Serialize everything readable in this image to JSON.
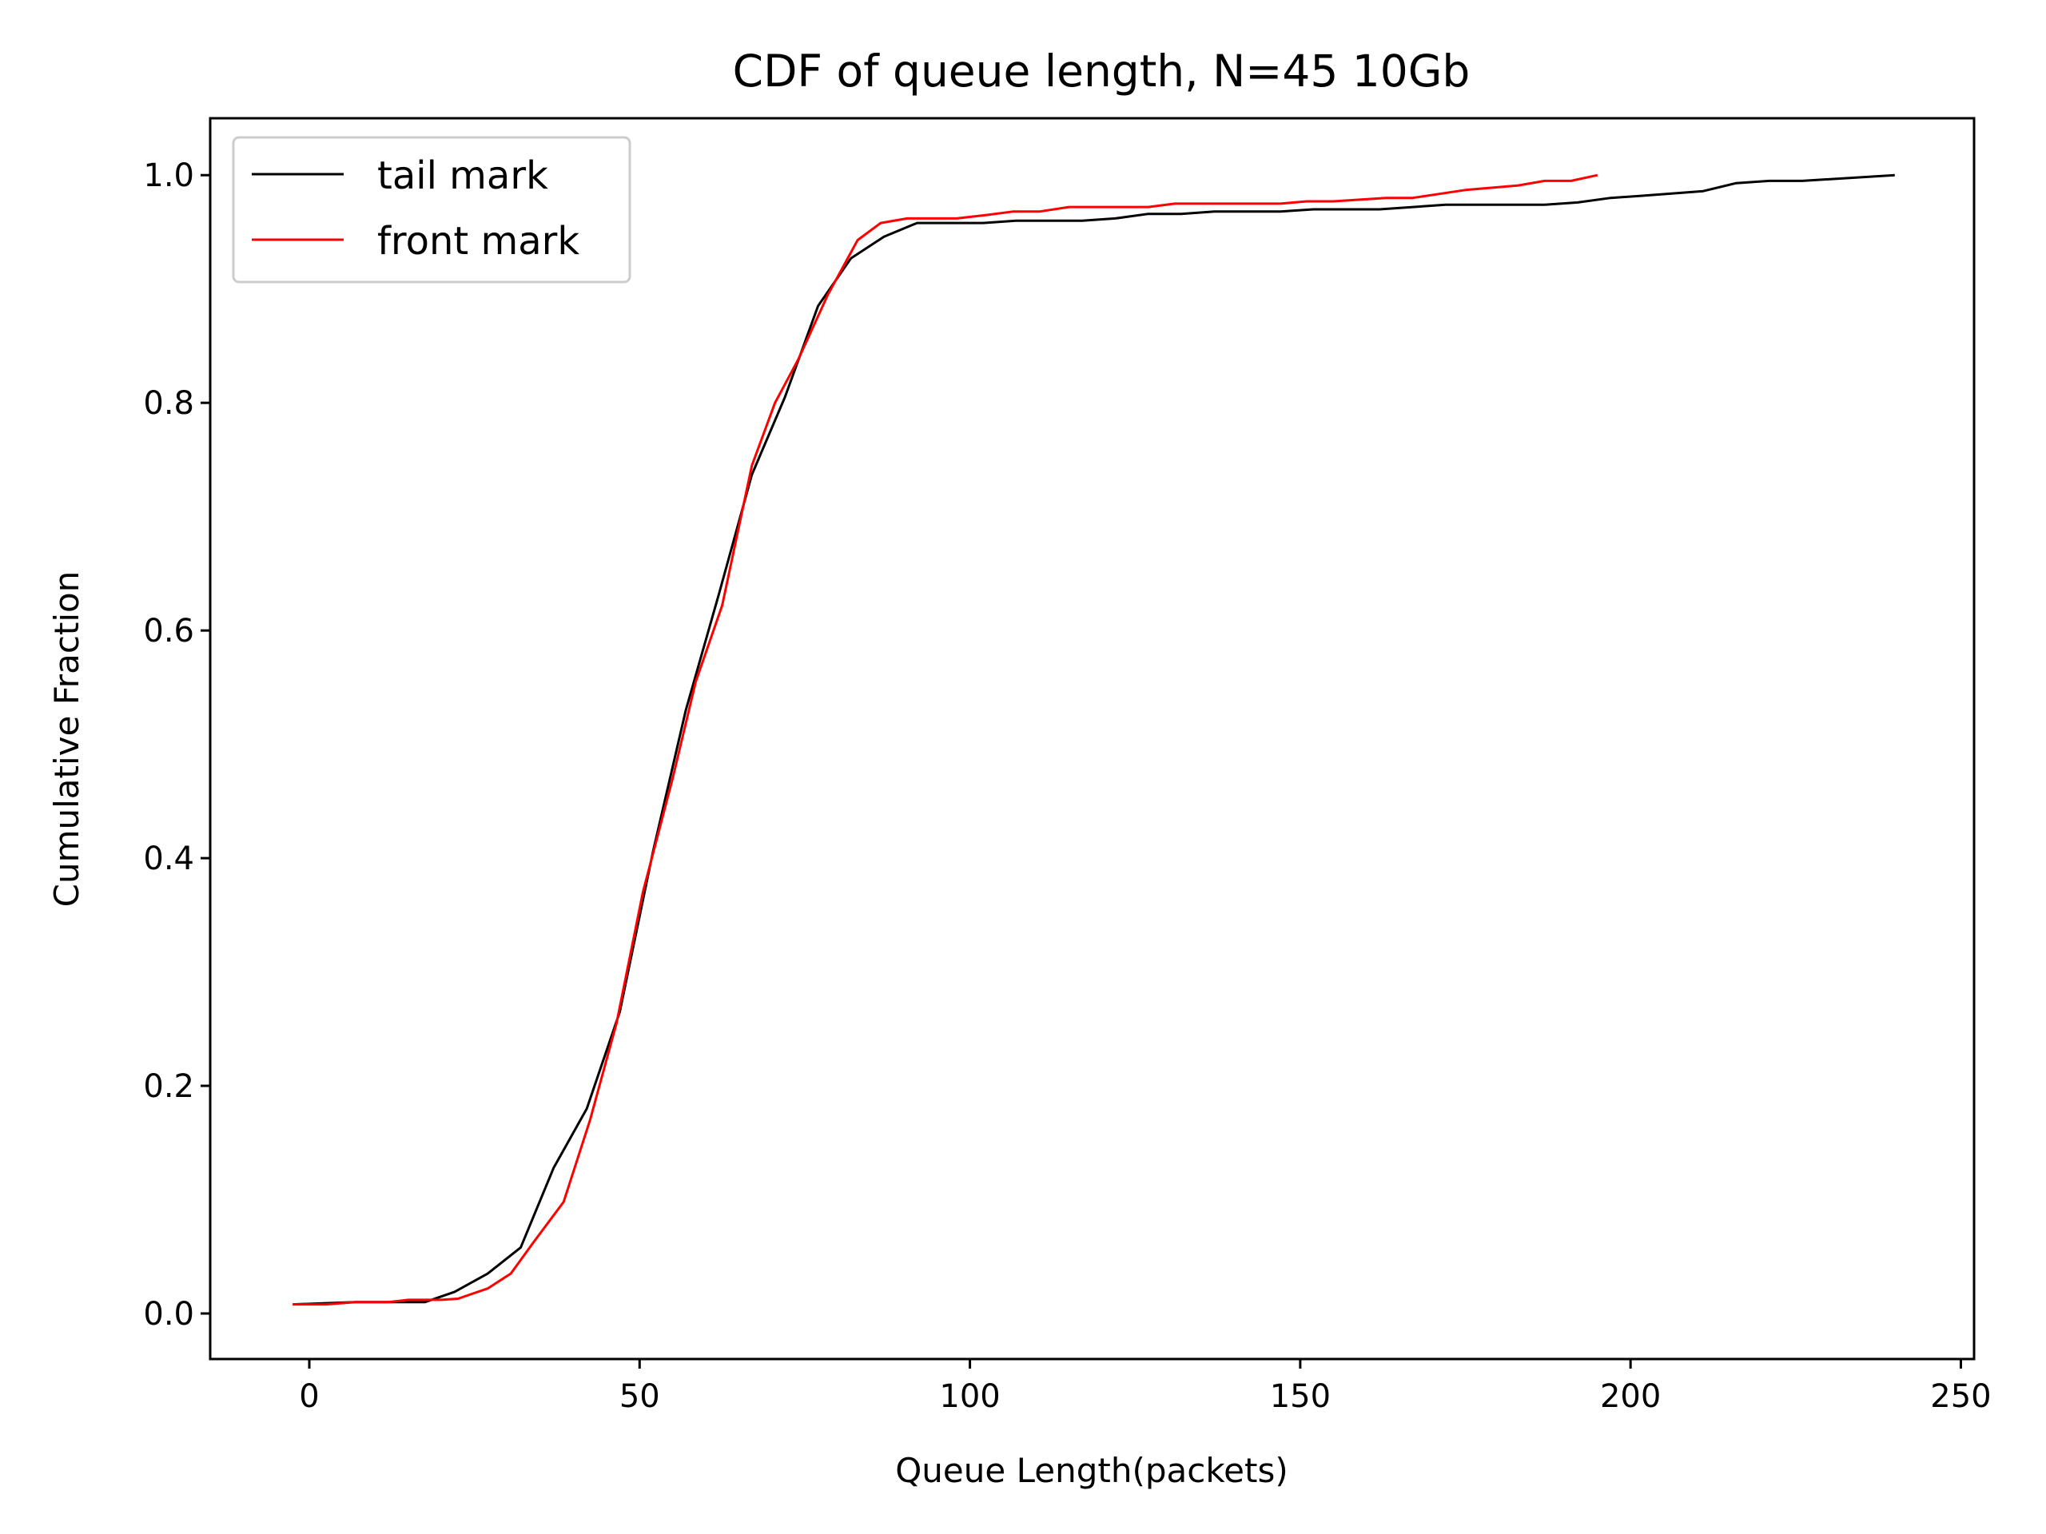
{
  "chart_data": {
    "type": "line",
    "title": "CDF of queue length, N=45 10Gb",
    "xlabel": "Queue Length(packets)",
    "ylabel": "Cumulative Fraction",
    "xlim": [
      -15,
      252
    ],
    "ylim": [
      -0.04,
      1.05
    ],
    "xticks": [
      0,
      50,
      100,
      150,
      200,
      250
    ],
    "yticks": [
      0.0,
      0.2,
      0.4,
      0.6,
      0.8,
      1.0
    ],
    "xtick_labels": [
      "0",
      "50",
      "100",
      "150",
      "200",
      "250"
    ],
    "ytick_labels": [
      "0.0",
      "0.2",
      "0.4",
      "0.6",
      "0.8",
      "1.0"
    ],
    "grid": false,
    "legend_position": "upper-left",
    "series": [
      {
        "name": "tail mark",
        "color": "#000000",
        "points": [
          [
            -2.5,
            0.008
          ],
          [
            7,
            0.01
          ],
          [
            17.5,
            0.01
          ],
          [
            22,
            0.019
          ],
          [
            27,
            0.035
          ],
          [
            32,
            0.058
          ],
          [
            37,
            0.128
          ],
          [
            42,
            0.18
          ],
          [
            47,
            0.265
          ],
          [
            52,
            0.405
          ],
          [
            57,
            0.53
          ],
          [
            62,
            0.632
          ],
          [
            67,
            0.737
          ],
          [
            72,
            0.805
          ],
          [
            77,
            0.885
          ],
          [
            82,
            0.927
          ],
          [
            87,
            0.946
          ],
          [
            92,
            0.958
          ],
          [
            102,
            0.958
          ],
          [
            107,
            0.96
          ],
          [
            117,
            0.96
          ],
          [
            122,
            0.962
          ],
          [
            127,
            0.966
          ],
          [
            132,
            0.966
          ],
          [
            137,
            0.968
          ],
          [
            147,
            0.968
          ],
          [
            152,
            0.97
          ],
          [
            162,
            0.97
          ],
          [
            172,
            0.974
          ],
          [
            187,
            0.974
          ],
          [
            192,
            0.976
          ],
          [
            197,
            0.98
          ],
          [
            202,
            0.982
          ],
          [
            211,
            0.986
          ],
          [
            216,
            0.993
          ],
          [
            221,
            0.995
          ],
          [
            226,
            0.995
          ],
          [
            240,
            1.0
          ]
        ]
      },
      {
        "name": "front mark",
        "color": "#ff0000",
        "points": [
          [
            -2.5,
            0.008
          ],
          [
            2.5,
            0.008
          ],
          [
            7,
            0.01
          ],
          [
            12,
            0.01
          ],
          [
            15,
            0.012
          ],
          [
            20,
            0.012
          ],
          [
            22.5,
            0.013
          ],
          [
            27,
            0.022
          ],
          [
            30.5,
            0.035
          ],
          [
            34,
            0.063
          ],
          [
            38.5,
            0.098
          ],
          [
            42.5,
            0.17
          ],
          [
            46.5,
            0.255
          ],
          [
            50.5,
            0.37
          ],
          [
            55,
            0.47
          ],
          [
            58.5,
            0.555
          ],
          [
            62.5,
            0.622
          ],
          [
            67,
            0.745
          ],
          [
            70.5,
            0.8
          ],
          [
            74,
            0.838
          ],
          [
            78.5,
            0.895
          ],
          [
            83,
            0.943
          ],
          [
            86.5,
            0.958
          ],
          [
            90.5,
            0.962
          ],
          [
            98,
            0.962
          ],
          [
            102.5,
            0.965
          ],
          [
            106.5,
            0.968
          ],
          [
            110.5,
            0.968
          ],
          [
            115,
            0.972
          ],
          [
            127,
            0.972
          ],
          [
            131,
            0.975
          ],
          [
            147,
            0.975
          ],
          [
            151,
            0.977
          ],
          [
            155,
            0.977
          ],
          [
            163,
            0.98
          ],
          [
            167,
            0.98
          ],
          [
            175,
            0.987
          ],
          [
            183,
            0.991
          ],
          [
            187,
            0.995
          ],
          [
            191,
            0.995
          ],
          [
            195,
            1.0
          ]
        ]
      }
    ]
  }
}
